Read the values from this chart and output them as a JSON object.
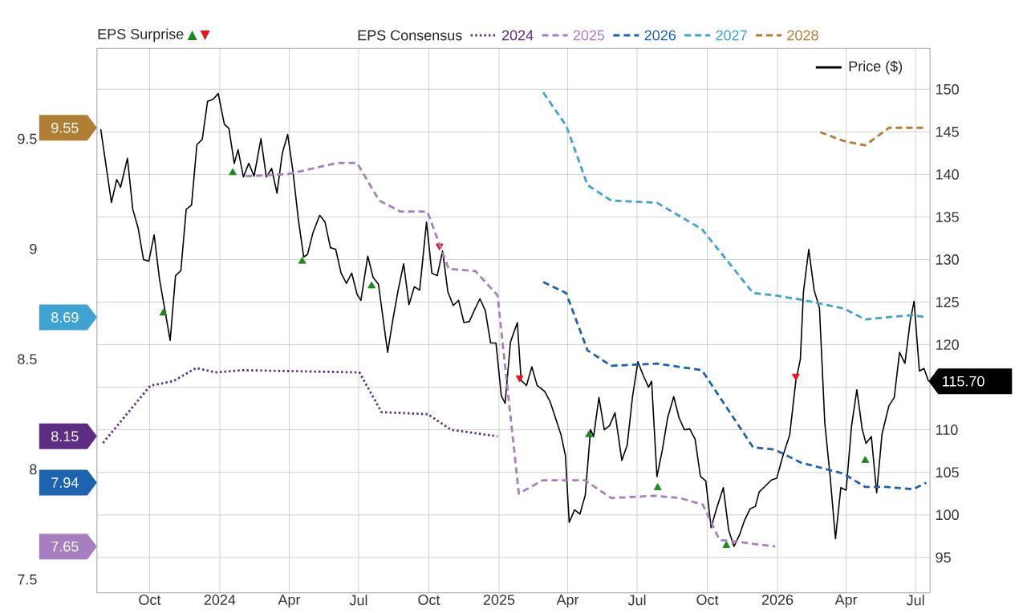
{
  "chart_data": {
    "type": "line",
    "legend_title": "EPS Consensus",
    "annotations": [
      "EPS Surprise",
      "8.15",
      "7.65",
      "7.94",
      "8.69",
      "9.55",
      "115.70"
    ],
    "xlim": [
      "2023-07-24",
      "2026-07-20"
    ],
    "xticks": [
      {
        "value": "2023-10-01",
        "label": "Oct"
      },
      {
        "value": "2024-01-01",
        "label": "2024"
      },
      {
        "value": "2024-04-01",
        "label": "Apr"
      },
      {
        "value": "2024-07-01",
        "label": "Jul"
      },
      {
        "value": "2024-10-01",
        "label": "Oct"
      },
      {
        "value": "2025-01-01",
        "label": "2025"
      },
      {
        "value": "2025-04-01",
        "label": "Apr"
      },
      {
        "value": "2025-07-01",
        "label": "Jul"
      },
      {
        "value": "2025-10-01",
        "label": "Oct"
      },
      {
        "value": "2026-01-01",
        "label": "2026"
      },
      {
        "value": "2026-04-01",
        "label": "Apr"
      },
      {
        "value": "2026-07-01",
        "label": "Jul"
      }
    ],
    "ylim": [
      7.44,
      9.91
    ],
    "yticks": [
      7.5,
      8,
      8.5,
      9,
      9.5
    ],
    "y2lim": [
      90.85,
      154.8
    ],
    "y2ticks": [
      95,
      100,
      105,
      110,
      {
        "value": 115,
        "label": null
      },
      120,
      125,
      130,
      135,
      140,
      145,
      150
    ],
    "grid": true,
    "legend": "top",
    "marker": "none",
    "series": [
      {
        "name": "2024",
        "color": "#5c2d82",
        "line_style": "dotted",
        "x": [
          "2023-08-01",
          "2023-10-02",
          "2023-11-01",
          "2023-12-01",
          "2023-12-27",
          "2024-01-30",
          "2024-07-02",
          "2024-07-31",
          "2024-09-30",
          "2024-10-30",
          "2024-12-30"
        ],
        "values": [
          8.12,
          8.38,
          8.4,
          8.46,
          8.44,
          8.45,
          8.44,
          8.26,
          8.25,
          8.18,
          8.15
        ]
      },
      {
        "name": "2025",
        "color": "#a77fc0",
        "line_style": "dashed",
        "x": [
          "2024-02-04",
          "2024-03-31",
          "2024-06-02",
          "2024-06-29",
          "2024-07-28",
          "2024-08-25",
          "2024-09-29",
          "2024-10-27",
          "2024-12-01",
          "2024-12-30",
          "2025-01-27",
          "2025-02-27",
          "2025-04-24",
          "2025-05-28",
          "2025-07-23",
          "2025-08-26",
          "2025-09-25",
          "2025-10-17",
          "2025-11-12",
          "2025-12-29"
        ],
        "values": [
          9.33,
          9.34,
          9.39,
          9.39,
          9.22,
          9.17,
          9.17,
          8.91,
          8.9,
          8.79,
          7.89,
          7.95,
          7.95,
          7.87,
          7.88,
          7.87,
          7.84,
          7.68,
          7.67,
          7.65
        ]
      },
      {
        "name": "2026",
        "color": "#1e63b0",
        "line_style": "dashed",
        "x": [
          "2025-02-28",
          "2025-03-30",
          "2025-04-27",
          "2025-05-28",
          "2025-07-27",
          "2025-09-24",
          "2025-11-30",
          "2025-12-28",
          "2026-02-01",
          "2026-03-29",
          "2026-04-26",
          "2026-05-24",
          "2026-06-28",
          "2026-07-15"
        ],
        "values": [
          8.85,
          8.8,
          8.54,
          8.47,
          8.48,
          8.45,
          8.1,
          8.09,
          8.03,
          7.98,
          7.92,
          7.92,
          7.91,
          7.94
        ]
      },
      {
        "name": "2027",
        "color": "#3ea3d0",
        "line_style": "dashed",
        "x": [
          "2025-02-28",
          "2025-03-30",
          "2025-04-27",
          "2025-05-28",
          "2025-07-27",
          "2025-09-24",
          "2025-11-30",
          "2025-12-28",
          "2026-02-01",
          "2026-03-29",
          "2026-04-26",
          "2026-05-24",
          "2026-06-28",
          "2026-07-15"
        ],
        "values": [
          9.71,
          9.56,
          9.29,
          9.22,
          9.21,
          9.09,
          8.8,
          8.79,
          8.77,
          8.73,
          8.68,
          8.69,
          8.7,
          8.69
        ]
      },
      {
        "name": "2028",
        "color": "#b07e33",
        "line_style": "dashed",
        "x": [
          "2026-02-26",
          "2026-03-29",
          "2026-04-26",
          "2026-05-27",
          "2026-07-15"
        ],
        "values": [
          9.53,
          9.49,
          9.47,
          9.55,
          9.55
        ]
      },
      {
        "name": "Price ($)",
        "color": "#000000",
        "line_style": "solid",
        "axis": "y2",
        "x": [
          "2023-07-29",
          "2023-08-12",
          "2023-08-19",
          "2023-08-24",
          "2023-09-02",
          "2023-09-09",
          "2023-09-16",
          "2023-09-23",
          "2023-09-30",
          "2023-10-07",
          "2023-10-14",
          "2023-10-28",
          "2023-11-04",
          "2023-11-11",
          "2023-11-18",
          "2023-11-25",
          "2023-12-02",
          "2023-12-09",
          "2023-12-16",
          "2023-12-23",
          "2023-12-30",
          "2024-01-07",
          "2024-01-13",
          "2024-01-20",
          "2024-01-25",
          "2024-02-01",
          "2024-02-08",
          "2024-02-15",
          "2024-02-24",
          "2024-03-02",
          "2024-03-09",
          "2024-03-16",
          "2024-03-23",
          "2024-03-30",
          "2024-04-06",
          "2024-04-13",
          "2024-04-20",
          "2024-04-25",
          "2024-05-02",
          "2024-05-11",
          "2024-05-18",
          "2024-05-25",
          "2024-06-01",
          "2024-06-08",
          "2024-06-15",
          "2024-06-22",
          "2024-06-29",
          "2024-07-04",
          "2024-07-13",
          "2024-07-20",
          "2024-07-27",
          "2024-08-08",
          "2024-08-15",
          "2024-08-22",
          "2024-08-29",
          "2024-09-05",
          "2024-09-12",
          "2024-09-19",
          "2024-09-28",
          "2024-10-05",
          "2024-10-12",
          "2024-10-19",
          "2024-10-26",
          "2024-11-02",
          "2024-11-09",
          "2024-11-16",
          "2024-11-23",
          "2024-11-30",
          "2024-12-07",
          "2024-12-14",
          "2024-12-21",
          "2024-12-28",
          "2025-01-04",
          "2025-01-09",
          "2025-01-16",
          "2025-01-25",
          "2025-01-30",
          "2025-02-06",
          "2025-02-13",
          "2025-02-20",
          "2025-03-02",
          "2025-03-09",
          "2025-03-16",
          "2025-03-23",
          "2025-03-29",
          "2025-04-03",
          "2025-04-10",
          "2025-04-17",
          "2025-04-24",
          "2025-05-01",
          "2025-05-05",
          "2025-05-12",
          "2025-05-19",
          "2025-05-26",
          "2025-06-02",
          "2025-06-11",
          "2025-06-18",
          "2025-06-25",
          "2025-07-02",
          "2025-07-09",
          "2025-07-16",
          "2025-07-20",
          "2025-07-27",
          "2025-08-03",
          "2025-08-10",
          "2025-08-18",
          "2025-08-25",
          "2025-09-01",
          "2025-09-08",
          "2025-09-15",
          "2025-09-22",
          "2025-09-29",
          "2025-10-06",
          "2025-10-13",
          "2025-10-22",
          "2025-10-29",
          "2025-11-05",
          "2025-11-12",
          "2025-11-19",
          "2025-11-26",
          "2025-12-03",
          "2025-12-08",
          "2025-12-15",
          "2025-12-24",
          "2025-12-31",
          "2026-01-08",
          "2026-01-17",
          "2026-01-25",
          "2026-01-31",
          "2026-02-04",
          "2026-02-11",
          "2026-02-18",
          "2026-02-25",
          "2026-03-04",
          "2026-03-11",
          "2026-03-18",
          "2026-03-25",
          "2026-04-01",
          "2026-04-08",
          "2026-04-15",
          "2026-04-22",
          "2026-04-27",
          "2026-05-04",
          "2026-05-11",
          "2026-05-18",
          "2026-05-27",
          "2026-06-03",
          "2026-06-10",
          "2026-06-17",
          "2026-06-24",
          "2026-06-29",
          "2026-07-06",
          "2026-07-12",
          "2026-07-18"
        ],
        "values": [
          145.3,
          136.7,
          139.4,
          138.5,
          141.9,
          135.9,
          133.7,
          130.0,
          129.8,
          132.9,
          127.7,
          120.5,
          128.1,
          128.7,
          135.9,
          136.4,
          143.5,
          144.1,
          148.6,
          148.8,
          149.5,
          145.9,
          145.4,
          141.3,
          142.9,
          139.7,
          141.3,
          139.8,
          144.2,
          139.7,
          140.7,
          137.8,
          142.5,
          144.7,
          140.3,
          134.7,
          130.3,
          130.6,
          133.1,
          135.2,
          134.4,
          131.4,
          131.2,
          128.4,
          127.2,
          128.4,
          125.9,
          125.2,
          130.4,
          127.9,
          127.1,
          119.1,
          123.0,
          126.5,
          129.5,
          124.7,
          126.8,
          126.4,
          134.4,
          128.4,
          128.1,
          131.0,
          126.2,
          124.6,
          125.2,
          122.6,
          122.7,
          124.1,
          125.4,
          124.0,
          120.2,
          120.2,
          114.0,
          113.1,
          120.3,
          122.6,
          115.8,
          115.2,
          117.4,
          115.2,
          114.5,
          113.3,
          111.4,
          109.5,
          107.0,
          99.1,
          100.6,
          100.1,
          102.3,
          110.0,
          109.2,
          113.8,
          110.0,
          110.5,
          112.0,
          106.4,
          108.2,
          113.9,
          118.0,
          116.4,
          115.0,
          115.7,
          104.5,
          107.6,
          111.4,
          113.9,
          111.4,
          110.0,
          110.1,
          108.9,
          104.5,
          104.0,
          98.5,
          100.7,
          103.2,
          98.2,
          96.3,
          97.6,
          99.4,
          100.7,
          101.0,
          102.7,
          103.3,
          104.1,
          104.3,
          106.9,
          109.4,
          115.7,
          118.3,
          126.2,
          131.2,
          126.4,
          124.3,
          110.8,
          104.5,
          97.2,
          103.2,
          102.9,
          110.4,
          114.7,
          110.1,
          108.4,
          109.2,
          102.6,
          109.5,
          112.8,
          113.8,
          119.1,
          117.8,
          122.8,
          125.1,
          116.9,
          117.2,
          115.7
        ]
      },
      {
        "type": "scatter",
        "marker": "triangle",
        "color": "#1a8a1a",
        "axis": "y2",
        "x": [
          "2023-10-19",
          "2024-01-18",
          "2024-04-18",
          "2024-07-18",
          "2025-04-29",
          "2025-07-28",
          "2025-10-26",
          "2026-04-26"
        ],
        "values": [
          123.7,
          140.2,
          129.8,
          126.9,
          109.4,
          103.2,
          96.4,
          106.4
        ]
      },
      {
        "type": "scatter",
        "marker": "triangle",
        "color": "#e8141a",
        "axis": "y2",
        "x": [
          "2024-10-15",
          "2025-01-28",
          "2026-01-25"
        ],
        "values": [
          131.6,
          116.1,
          116.3
        ]
      }
    ]
  }
}
